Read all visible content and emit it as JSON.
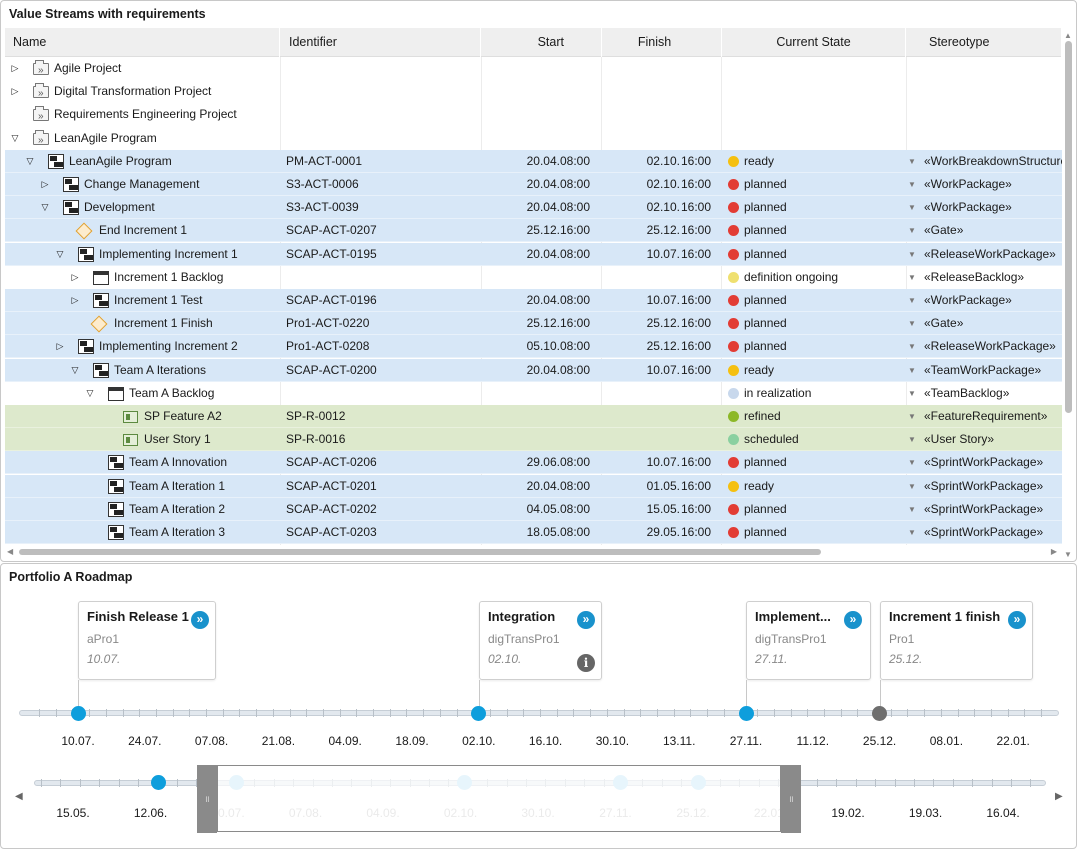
{
  "tree_panel": {
    "title": "Value Streams with requirements",
    "columns": [
      "Name",
      "Identifier",
      "Start",
      "Finish",
      "Current State",
      "Stereotype"
    ],
    "rows": [
      {
        "level": 0,
        "toggle": "▷",
        "icon": "folder",
        "name": "Agile Project",
        "id": "",
        "start_d": "",
        "start_t": "",
        "fin_d": "",
        "fin_t": "",
        "state": "",
        "state_color": "",
        "stereo": "",
        "bg": ""
      },
      {
        "level": 0,
        "toggle": "▷",
        "icon": "folder",
        "name": "Digital Transformation Project",
        "id": "",
        "start_d": "",
        "start_t": "",
        "fin_d": "",
        "fin_t": "",
        "state": "",
        "state_color": "",
        "stereo": "",
        "bg": ""
      },
      {
        "level": 0,
        "toggle": "",
        "icon": "folder",
        "name": "Requirements Engineering Project",
        "id": "",
        "start_d": "",
        "start_t": "",
        "fin_d": "",
        "fin_t": "",
        "state": "",
        "state_color": "",
        "stereo": "",
        "bg": ""
      },
      {
        "level": 0,
        "toggle": "▽",
        "icon": "folder",
        "name": "LeanAgile Program",
        "id": "",
        "start_d": "",
        "start_t": "",
        "fin_d": "",
        "fin_t": "",
        "state": "",
        "state_color": "",
        "stereo": "",
        "bg": ""
      },
      {
        "level": 1,
        "toggle": "▽",
        "icon": "wbs",
        "name": "LeanAgile Program",
        "id": "PM-ACT-0001",
        "start_d": "20.04.",
        "start_t": "08:00",
        "fin_d": "02.10.",
        "fin_t": "16:00",
        "state": "ready",
        "state_color": "#f5c010",
        "stereo": "«WorkBreakdownStructure»",
        "bg": "blue"
      },
      {
        "level": 2,
        "toggle": "▷",
        "icon": "wbs",
        "name": "Change Management",
        "id": "S3-ACT-0006",
        "start_d": "20.04.",
        "start_t": "08:00",
        "fin_d": "02.10.",
        "fin_t": "16:00",
        "state": "planned",
        "state_color": "#e23c34",
        "stereo": "«WorkPackage»",
        "bg": "blue"
      },
      {
        "level": 2,
        "toggle": "▽",
        "icon": "wbs",
        "name": "Development",
        "id": "S3-ACT-0039",
        "start_d": "20.04.",
        "start_t": "08:00",
        "fin_d": "02.10.",
        "fin_t": "16:00",
        "state": "planned",
        "state_color": "#e23c34",
        "stereo": "«WorkPackage»",
        "bg": "blue"
      },
      {
        "level": 3,
        "toggle": "",
        "icon": "gate",
        "name": "End Increment 1",
        "id": "SCAP-ACT-0207",
        "start_d": "25.12.",
        "start_t": "16:00",
        "fin_d": "25.12.",
        "fin_t": "16:00",
        "state": "planned",
        "state_color": "#e23c34",
        "stereo": "«Gate»",
        "bg": "blue"
      },
      {
        "level": 3,
        "toggle": "▽",
        "icon": "wbs",
        "name": "Implementing Increment 1",
        "id": "SCAP-ACT-0195",
        "start_d": "20.04.",
        "start_t": "08:00",
        "fin_d": "10.07.",
        "fin_t": "16:00",
        "state": "planned",
        "state_color": "#e23c34",
        "stereo": "«ReleaseWorkPackage»",
        "bg": "blue"
      },
      {
        "level": 4,
        "toggle": "▷",
        "icon": "backlog",
        "name": "Increment 1 Backlog",
        "id": "",
        "start_d": "",
        "start_t": "",
        "fin_d": "",
        "fin_t": "",
        "state": "definition ongoing",
        "state_color": "#efe070",
        "stereo": "«ReleaseBacklog»",
        "bg": ""
      },
      {
        "level": 4,
        "toggle": "▷",
        "icon": "wbs",
        "name": "Increment 1 Test",
        "id": "SCAP-ACT-0196",
        "start_d": "20.04.",
        "start_t": "08:00",
        "fin_d": "10.07.",
        "fin_t": "16:00",
        "state": "planned",
        "state_color": "#e23c34",
        "stereo": "«WorkPackage»",
        "bg": "blue"
      },
      {
        "level": 4,
        "toggle": "",
        "icon": "gate",
        "name": "Increment 1 Finish",
        "id": "Pro1-ACT-0220",
        "start_d": "25.12.",
        "start_t": "16:00",
        "fin_d": "25.12.",
        "fin_t": "16:00",
        "state": "planned",
        "state_color": "#e23c34",
        "stereo": "«Gate»",
        "bg": "blue"
      },
      {
        "level": 3,
        "toggle": "▷",
        "icon": "wbs",
        "name": "Implementing Increment 2",
        "id": "Pro1-ACT-0208",
        "start_d": "05.10.",
        "start_t": "08:00",
        "fin_d": "25.12.",
        "fin_t": "16:00",
        "state": "planned",
        "state_color": "#e23c34",
        "stereo": "«ReleaseWorkPackage»",
        "bg": "blue"
      },
      {
        "level": 4,
        "toggle": "▽",
        "icon": "wbs",
        "name": "Team A Iterations",
        "id": "SCAP-ACT-0200",
        "start_d": "20.04.",
        "start_t": "08:00",
        "fin_d": "10.07.",
        "fin_t": "16:00",
        "state": "ready",
        "state_color": "#f5c010",
        "stereo": "«TeamWorkPackage»",
        "bg": "blue"
      },
      {
        "level": 5,
        "toggle": "▽",
        "icon": "backlog",
        "name": "Team A Backlog",
        "id": "",
        "start_d": "",
        "start_t": "",
        "fin_d": "",
        "fin_t": "",
        "state": "in realization",
        "state_color": "#c8d8ec",
        "stereo": "«TeamBacklog»",
        "bg": ""
      },
      {
        "level": 6,
        "toggle": "",
        "icon": "req",
        "name": "SP Feature A2",
        "id": "SP-R-0012",
        "start_d": "",
        "start_t": "",
        "fin_d": "",
        "fin_t": "",
        "state": "refined",
        "state_color": "#8cb828",
        "stereo": "«FeatureRequirement»",
        "bg": "green"
      },
      {
        "level": 6,
        "toggle": "",
        "icon": "req",
        "name": "User Story 1",
        "id": "SP-R-0016",
        "start_d": "",
        "start_t": "",
        "fin_d": "",
        "fin_t": "",
        "state": "scheduled",
        "state_color": "#8ad0a0",
        "stereo": "«User Story»",
        "bg": "green"
      },
      {
        "level": 5,
        "toggle": "",
        "icon": "wbs",
        "name": "Team A Innovation",
        "id": "SCAP-ACT-0206",
        "start_d": "29.06.",
        "start_t": "08:00",
        "fin_d": "10.07.",
        "fin_t": "16:00",
        "state": "planned",
        "state_color": "#e23c34",
        "stereo": "«SprintWorkPackage»",
        "bg": "blue"
      },
      {
        "level": 5,
        "toggle": "",
        "icon": "wbs",
        "name": "Team A Iteration 1",
        "id": "SCAP-ACT-0201",
        "start_d": "20.04.",
        "start_t": "08:00",
        "fin_d": "01.05.",
        "fin_t": "16:00",
        "state": "ready",
        "state_color": "#f5c010",
        "stereo": "«SprintWorkPackage»",
        "bg": "blue"
      },
      {
        "level": 5,
        "toggle": "",
        "icon": "wbs",
        "name": "Team A Iteration 2",
        "id": "SCAP-ACT-0202",
        "start_d": "04.05.",
        "start_t": "08:00",
        "fin_d": "15.05.",
        "fin_t": "16:00",
        "state": "planned",
        "state_color": "#e23c34",
        "stereo": "«SprintWorkPackage»",
        "bg": "blue"
      },
      {
        "level": 5,
        "toggle": "",
        "icon": "wbs",
        "name": "Team A Iteration 3",
        "id": "SCAP-ACT-0203",
        "start_d": "18.05.",
        "start_t": "08:00",
        "fin_d": "29.05.",
        "fin_t": "16:00",
        "state": "planned",
        "state_color": "#e23c34",
        "stereo": "«SprintWorkPackage»",
        "bg": "blue"
      }
    ]
  },
  "roadmap": {
    "title": "Portfolio A Roadmap",
    "cards": [
      {
        "title": "Finish Release 1",
        "sub": "aPro1",
        "date": "10.07.",
        "info": false
      },
      {
        "title": "Integration",
        "sub": "digTransPro1",
        "date": "02.10.",
        "info": true
      },
      {
        "title": "Implement...",
        "sub": "digTransPro1",
        "date": "27.11.",
        "info": false
      },
      {
        "title": "Increment 1 finish",
        "sub": "Pro1",
        "date": "25.12.",
        "info": false
      }
    ],
    "go_glyph": "»",
    "info_glyph": "i",
    "handle_glyph": "॥",
    "timeline_labels": [
      "10.07.",
      "24.07.",
      "07.08.",
      "21.08.",
      "04.09.",
      "18.09.",
      "02.10.",
      "16.10.",
      "30.10.",
      "13.11.",
      "27.11.",
      "11.12.",
      "25.12.",
      "08.01.",
      "22.01."
    ],
    "milestones": [
      {
        "date": "10.07.",
        "color": "#0e9edc"
      },
      {
        "date": "02.10.",
        "color": "#0e9edc"
      },
      {
        "date": "27.11.",
        "color": "#0e9edc"
      },
      {
        "date": "25.12.",
        "color": "#6e6e6e"
      }
    ],
    "overview_labels": [
      "15.05.",
      "12.06.",
      "10.07.",
      "07.08.",
      "04.09.",
      "02.10.",
      "30.10.",
      "27.11.",
      "25.12.",
      "22.01.",
      "19.02.",
      "19.03.",
      "16.04."
    ],
    "overview_faded_from": 2,
    "overview_faded_to": 9,
    "overview_milestones": [
      "12.06.",
      "10.07.",
      "02.10.",
      "27.11.",
      "25.12."
    ],
    "nav_left": "◀",
    "nav_right": "▶"
  }
}
